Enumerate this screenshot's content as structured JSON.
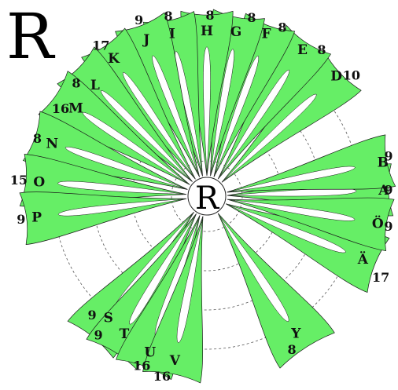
{
  "title_letter": "R",
  "center_letter": "R",
  "colors": {
    "petal_fill": "#66ee66",
    "petal_stroke": "#1a1a1a",
    "background": "#ffffff",
    "guide_circle": "#555555"
  },
  "chart_data": {
    "type": "radial-petal-diagram",
    "center": "R",
    "grid": true,
    "petals": [
      {
        "letter": "A",
        "count": "9"
      },
      {
        "letter": "B",
        "count": "9"
      },
      {
        "letter": "D",
        "count": "10"
      },
      {
        "letter": "E",
        "count": "8"
      },
      {
        "letter": "F",
        "count": "8"
      },
      {
        "letter": "G",
        "count": "8"
      },
      {
        "letter": "H",
        "count": "8"
      },
      {
        "letter": "I",
        "count": "8"
      },
      {
        "letter": "J",
        "count": "9"
      },
      {
        "letter": "K",
        "count": "17"
      },
      {
        "letter": "L",
        "count": "8"
      },
      {
        "letter": "M",
        "count": "16"
      },
      {
        "letter": "N",
        "count": "8"
      },
      {
        "letter": "O",
        "count": "15"
      },
      {
        "letter": "P",
        "count": "9"
      },
      {
        "letter": "S",
        "count": "9"
      },
      {
        "letter": "T",
        "count": "9"
      },
      {
        "letter": "U",
        "count": "16"
      },
      {
        "letter": "V",
        "count": "16"
      },
      {
        "letter": "Y",
        "count": "8"
      },
      {
        "letter": "Ä",
        "count": "17"
      },
      {
        "letter": "Ö",
        "count": "9"
      }
    ]
  }
}
